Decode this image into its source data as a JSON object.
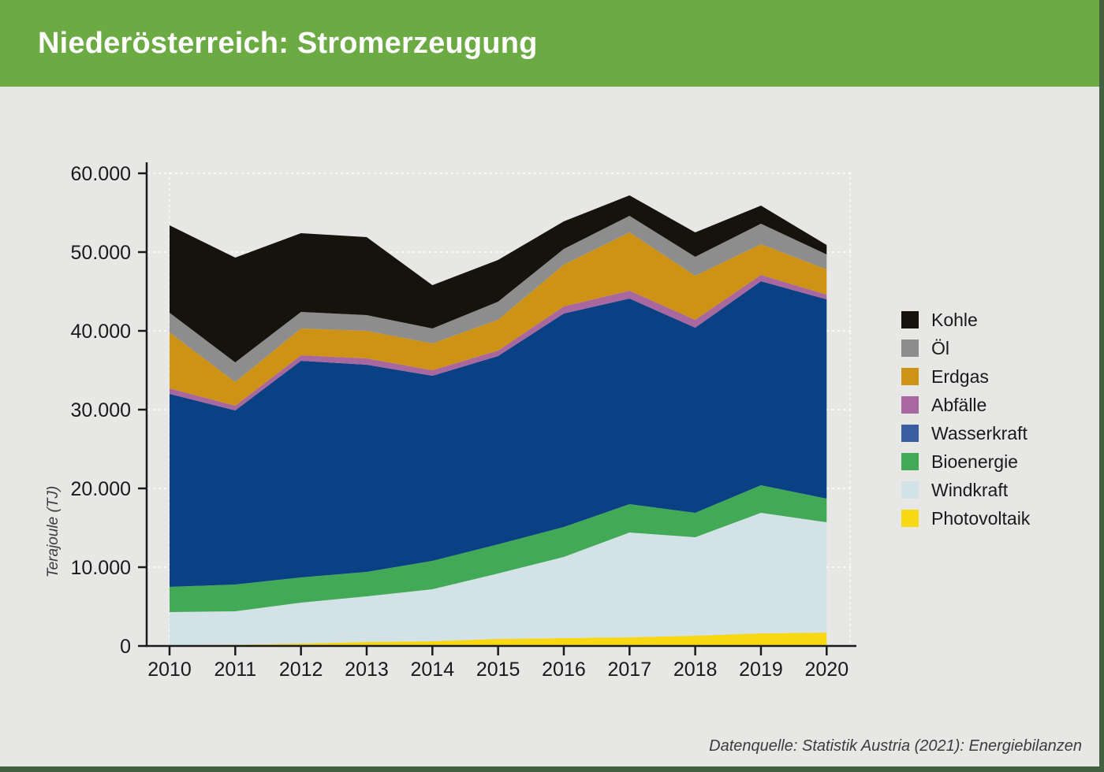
{
  "header": {
    "title": "Niederösterreich: Stromerzeugung",
    "background_color": "#6caa43"
  },
  "page": {
    "background_color": "#e7e7e5",
    "frame_border_color": "#42603f"
  },
  "source_note": "Datenquelle: Statistik Austria (2021): Energiebilanzen",
  "chart_data": {
    "type": "area",
    "stacked": true,
    "title": "Niederösterreich: Stromerzeugung",
    "xlabel": "",
    "ylabel": "Terajoule (TJ)",
    "unit": "TJ",
    "x": [
      2010,
      2011,
      2012,
      2013,
      2014,
      2015,
      2016,
      2017,
      2018,
      2019,
      2020
    ],
    "x_tick_labels": [
      "2010",
      "2011",
      "2012",
      "2013",
      "2014",
      "2015",
      "2016",
      "2017",
      "2018",
      "2019",
      "2020"
    ],
    "ylim": [
      0,
      60000
    ],
    "y_ticks": [
      0,
      10000,
      20000,
      30000,
      40000,
      50000,
      60000
    ],
    "y_tick_labels": [
      "0",
      "10.000",
      "20.000",
      "30.000",
      "40.000",
      "50.000",
      "60.000"
    ],
    "grid": "horizontal-white-dashed",
    "legend_position": "right",
    "stack_order": "bottom-to-top",
    "axis_color": "#1a1a1a",
    "gridline_color": "#ffffff",
    "series": [
      {
        "name": "Photovoltaik",
        "key": "photovoltaik",
        "color": "#f8d713",
        "values": [
          100,
          150,
          300,
          500,
          600,
          900,
          1000,
          1100,
          1300,
          1600,
          1700
        ]
      },
      {
        "name": "Windkraft",
        "key": "windkraft",
        "color": "#d3e2e7",
        "values": [
          4200,
          4250,
          5200,
          5800,
          6600,
          8300,
          10300,
          13300,
          12500,
          15300,
          14000
        ]
      },
      {
        "name": "Bioenergie",
        "key": "bioenergie",
        "color": "#42a956",
        "values": [
          3200,
          3400,
          3200,
          3100,
          3600,
          3700,
          3800,
          3600,
          3100,
          3500,
          3000
        ]
      },
      {
        "name": "Wasserkraft",
        "key": "wasserkraft",
        "color": "#0a4184",
        "legend_color": "#3a5da1",
        "values": [
          24500,
          22100,
          27500,
          26300,
          23500,
          23900,
          27100,
          26100,
          23500,
          25900,
          25300
        ]
      },
      {
        "name": "Abfälle",
        "key": "abfaelle",
        "color": "#a8679e",
        "values": [
          700,
          600,
          700,
          800,
          700,
          700,
          900,
          1000,
          1000,
          800,
          600
        ]
      },
      {
        "name": "Erdgas",
        "key": "erdgas",
        "color": "#ce9315",
        "values": [
          7100,
          3000,
          3400,
          3500,
          3400,
          3900,
          5300,
          7400,
          5600,
          3900,
          3200
        ]
      },
      {
        "name": "Öl",
        "key": "oel",
        "color": "#8d8d8d",
        "values": [
          2500,
          2500,
          2100,
          2000,
          1900,
          2300,
          2000,
          2100,
          2400,
          2600,
          1900
        ]
      },
      {
        "name": "Kohle",
        "key": "kohle",
        "color": "#16130d",
        "values": [
          11100,
          13300,
          10000,
          9900,
          5500,
          5300,
          3500,
          2600,
          3100,
          2300,
          1200
        ]
      }
    ],
    "legend_order_top_to_bottom": [
      "Kohle",
      "Öl",
      "Erdgas",
      "Abfälle",
      "Wasserkraft",
      "Bioenergie",
      "Windkraft",
      "Photovoltaik"
    ]
  }
}
